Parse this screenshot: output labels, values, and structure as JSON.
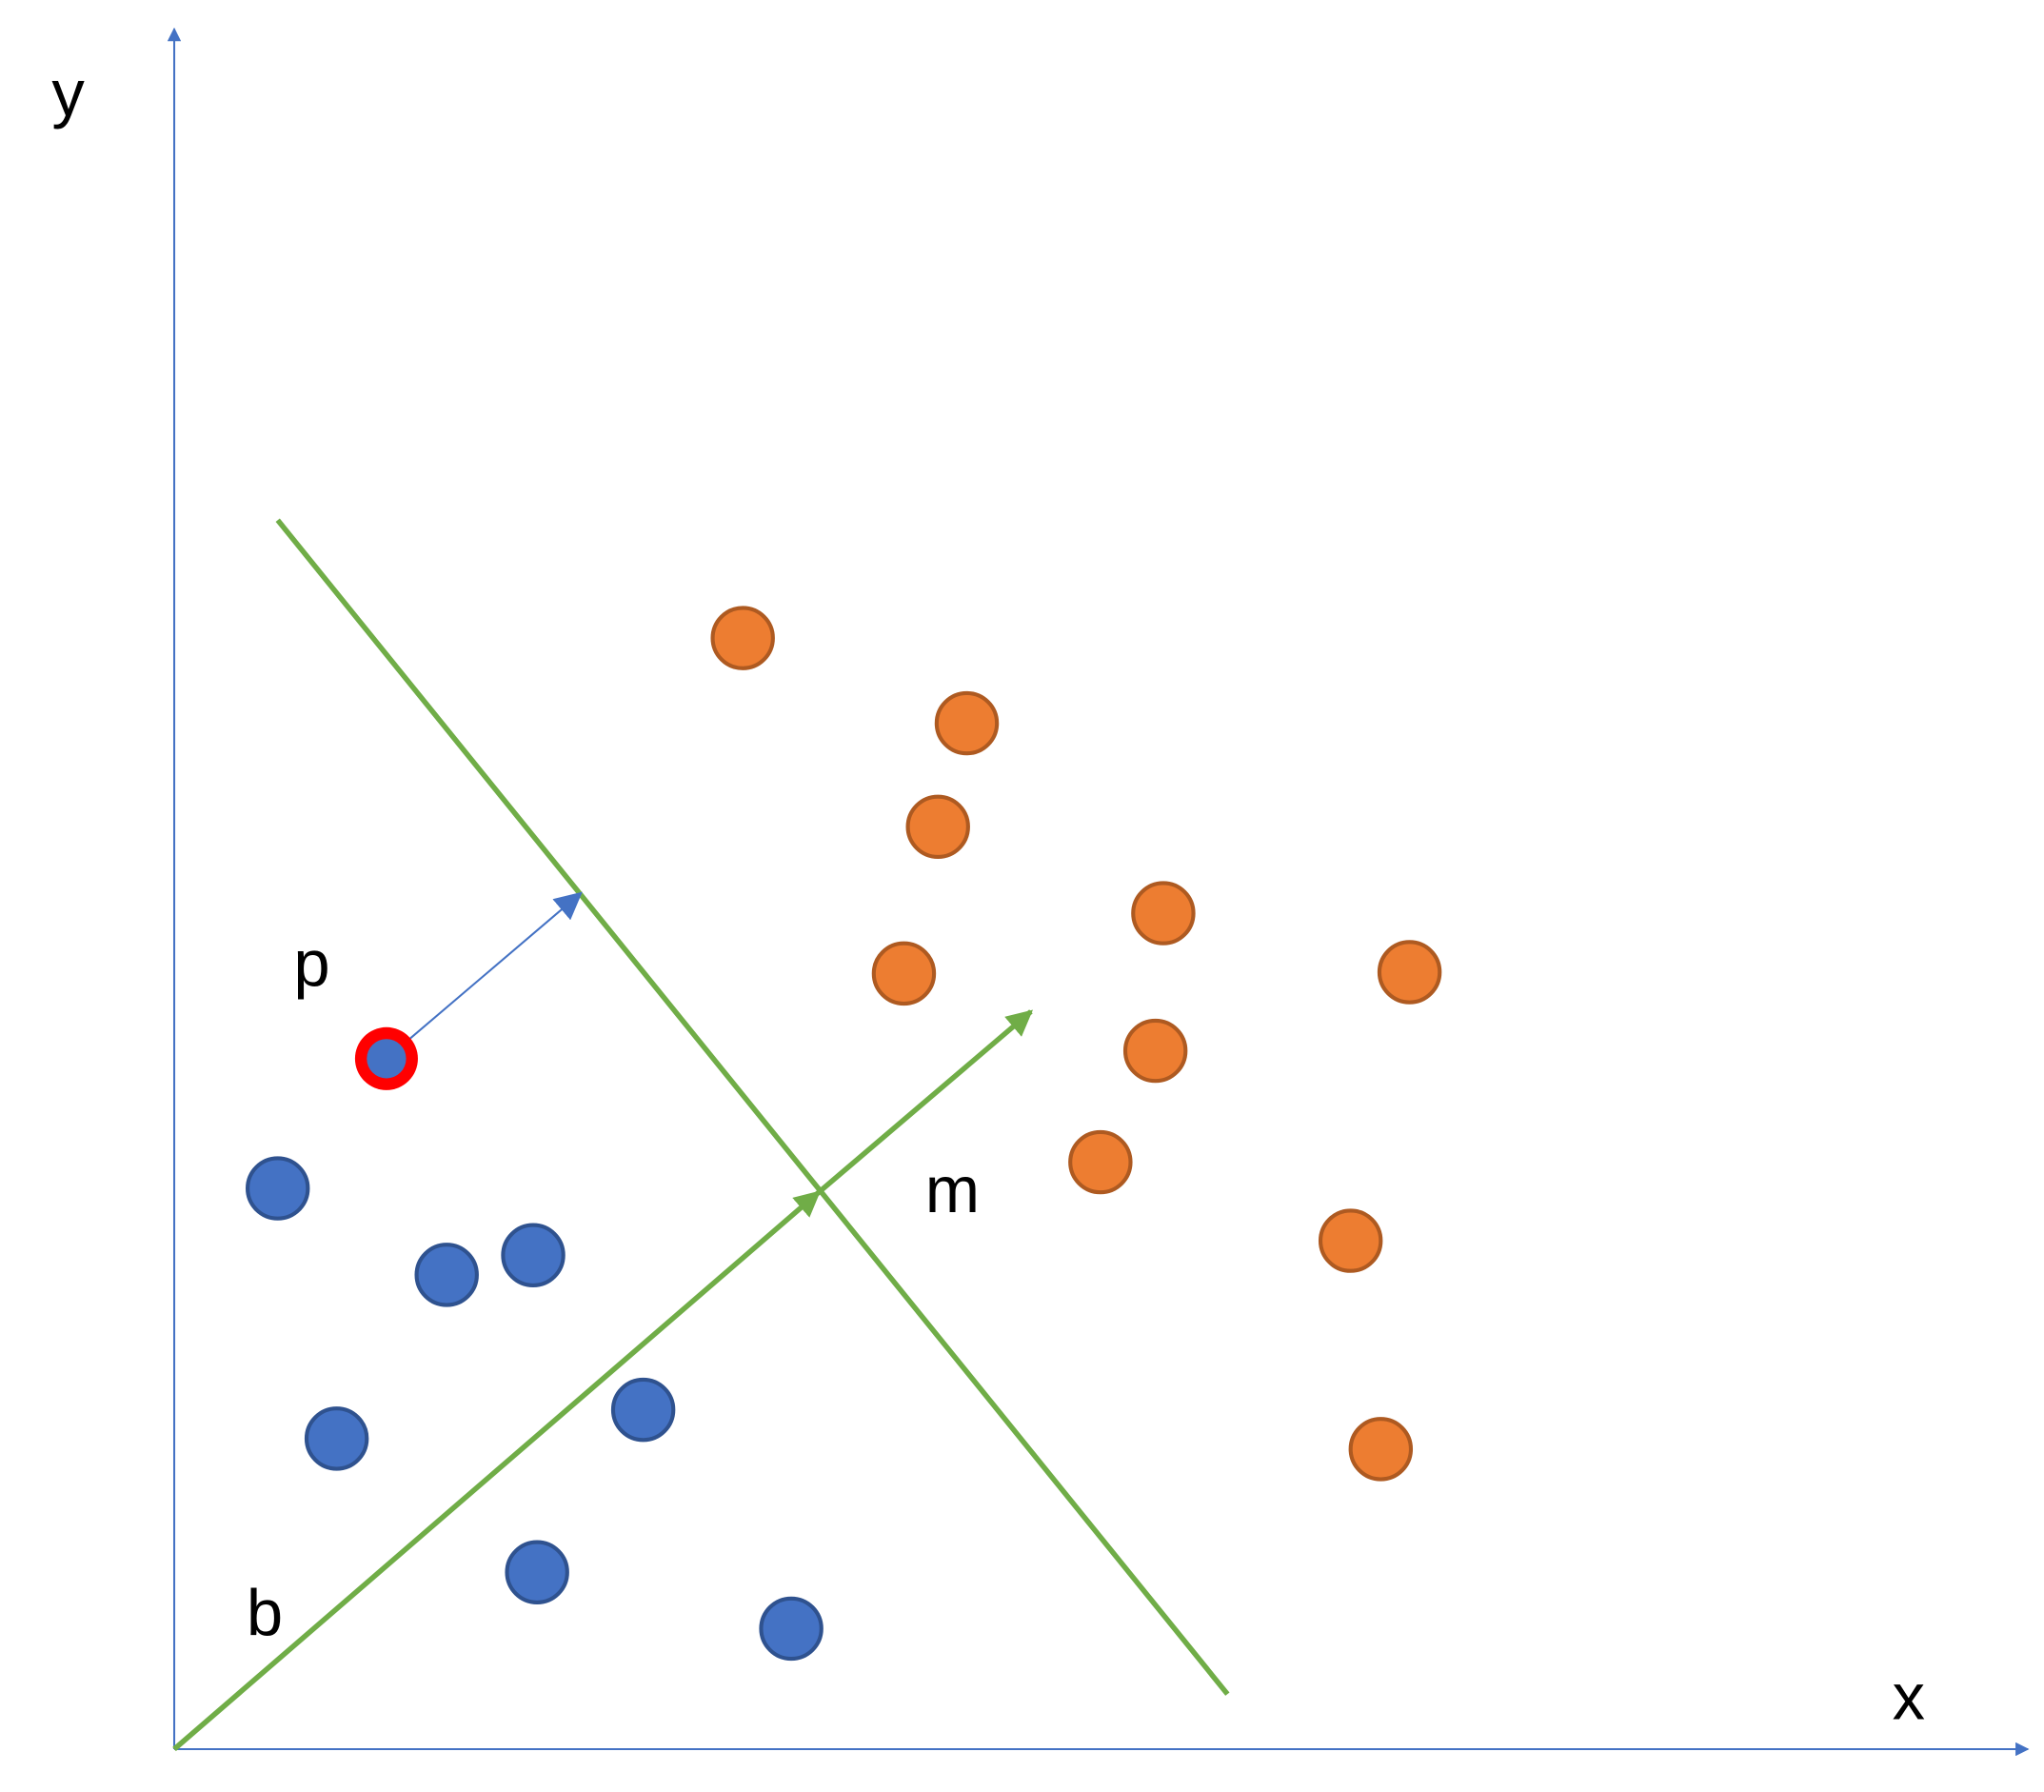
{
  "axes": {
    "y_label": "y",
    "x_label": "x"
  },
  "labels": {
    "point": "p",
    "direction": "m",
    "offset": "b"
  }
}
